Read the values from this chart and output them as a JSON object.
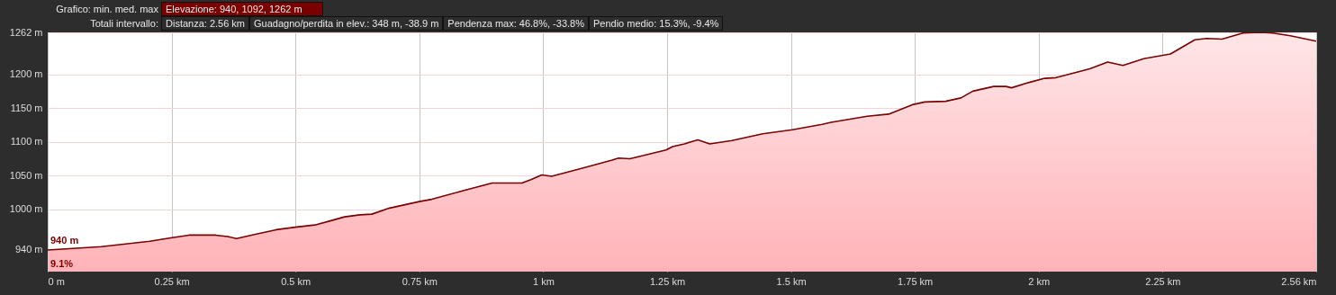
{
  "chart_data": {
    "type": "area",
    "annotations": [
      "Grafico: min. med. max",
      "Elevazione: 940, 1092, 1262 m",
      "Totali intervallo:",
      "Distanza: 2.56 km",
      "Guadagno/perdita in elev.: 348 m, -38.9 m",
      "Pendenza max: 46.8%, -33.8%",
      "Pendio medio: 15.3%, -9.4%",
      {
        "text": "940 m",
        "x": 0,
        "y": 940
      },
      {
        "text": "9.1%",
        "x": 0,
        "y": 940
      }
    ],
    "x": [
      0,
      0.108,
      0.206,
      0.248,
      0.285,
      0.339,
      0.363,
      0.381,
      0.417,
      0.461,
      0.503,
      0.539,
      0.57,
      0.599,
      0.63,
      0.654,
      0.69,
      0.752,
      0.775,
      0.835,
      0.897,
      0.957,
      0.975,
      0.997,
      1.017,
      1.079,
      1.139,
      1.152,
      1.175,
      1.248,
      1.261,
      1.285,
      1.312,
      1.336,
      1.381,
      1.443,
      1.503,
      1.563,
      1.581,
      1.654,
      1.697,
      1.745,
      1.77,
      1.812,
      1.843,
      1.867,
      1.909,
      1.934,
      1.945,
      1.981,
      2.012,
      2.035,
      2.072,
      2.103,
      2.139,
      2.17,
      2.212,
      2.266,
      2.315,
      2.339,
      2.37,
      2.412,
      2.448,
      2.472,
      2.508,
      2.56
    ],
    "series": [
      {
        "color": "#ffb3b8",
        "values": [
          940,
          945,
          953,
          958,
          962,
          962,
          960,
          957,
          963,
          970,
          974,
          977,
          983,
          989,
          992,
          993,
          1002,
          1012,
          1015,
          1027,
          1039,
          1039,
          1044,
          1051,
          1049,
          1061,
          1073,
          1076,
          1075,
          1088,
          1093,
          1097,
          1103,
          1097,
          1102,
          1112,
          1118,
          1126,
          1129,
          1138,
          1141,
          1155,
          1159,
          1160,
          1165,
          1175,
          1182,
          1182,
          1180,
          1188,
          1194,
          1195,
          1202,
          1208,
          1218,
          1213,
          1223,
          1230,
          1251,
          1253,
          1252,
          1261,
          1262,
          1261,
          1257,
          1249
        ]
      }
    ],
    "xlim": [
      0,
      2.56
    ],
    "xticks": [
      {
        "value": 0,
        "label": "0 m"
      },
      {
        "value": 0.25,
        "label": "0.25 km"
      },
      {
        "value": 0.5,
        "label": "0.5 km"
      },
      {
        "value": 0.75,
        "label": "0.75 km"
      },
      {
        "value": 1,
        "label": "1 km"
      },
      {
        "value": 1.25,
        "label": "1.25 km"
      },
      {
        "value": 1.5,
        "label": "1.5 km"
      },
      {
        "value": 1.75,
        "label": "1.75 km"
      },
      {
        "value": 2,
        "label": "2 km"
      },
      {
        "value": 2.25,
        "label": "2.25 km"
      },
      {
        "value": 2.56,
        "label": "2.56 km"
      }
    ],
    "ylim": [
      908,
      1262
    ],
    "yticks": [
      {
        "value": 940,
        "label": "940 m"
      },
      {
        "value": 1000,
        "label": "1000 m"
      },
      {
        "value": 1050,
        "label": "1050 m"
      },
      {
        "value": 1100,
        "label": "1100 m"
      },
      {
        "value": 1150,
        "label": "1150 m"
      },
      {
        "value": 1200,
        "label": "1200 m"
      },
      {
        "value": 1262,
        "label": "1262 m"
      }
    ],
    "grid": true
  }
}
